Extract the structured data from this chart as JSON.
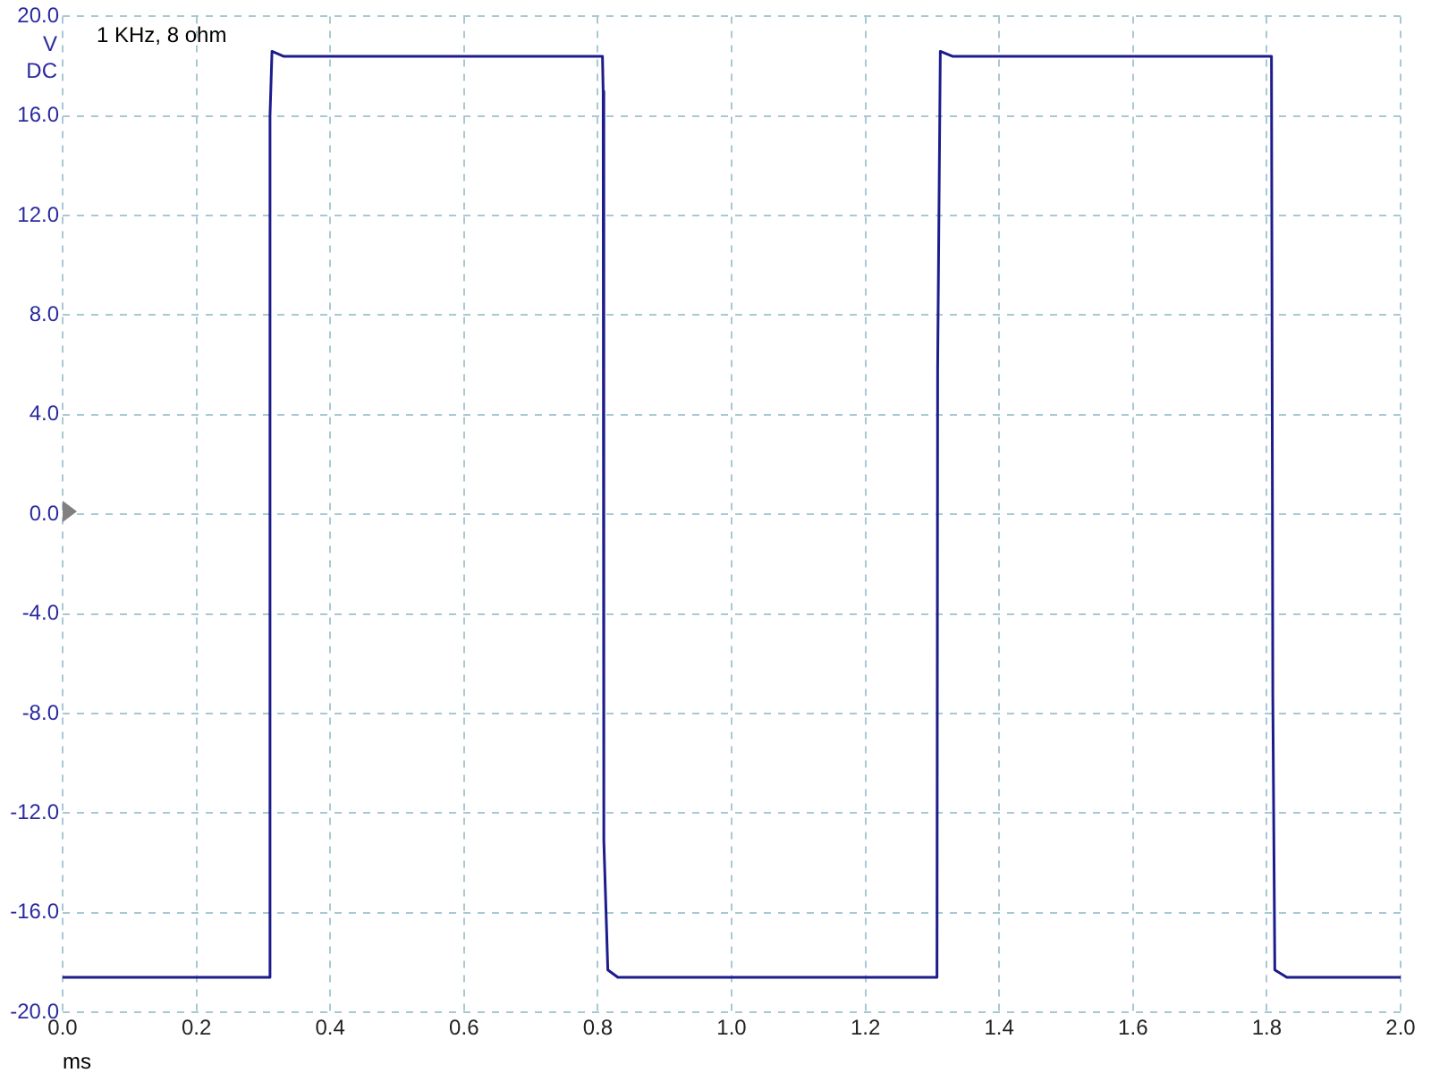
{
  "chart_data": {
    "type": "line",
    "annotations": [
      "1 KHz, 8 ohm"
    ],
    "xlabel": "ms",
    "ylabel": "V DC",
    "x": [
      0,
      0.31,
      0.31,
      0.313,
      0.33,
      0.807,
      0.808,
      0.809,
      0.815,
      0.83,
      1.307,
      1.308,
      1.312,
      1.33,
      1.807,
      1.809,
      1.812,
      1.83,
      2.0
    ],
    "series": [
      {
        "color": "#1c1c8c",
        "values": [
          -18.6,
          -18.6,
          16.0,
          18.6,
          18.4,
          18.4,
          17.0,
          -13.1,
          -18.3,
          -18.6,
          -18.6,
          5.9,
          18.6,
          18.4,
          18.4,
          -7.3,
          -18.3,
          -18.6,
          -18.6
        ]
      }
    ],
    "xlim": [
      0,
      2
    ],
    "xticks": [
      {
        "value": 0,
        "label": "0.0"
      },
      0.2,
      0.4,
      0.6,
      0.8,
      {
        "value": 1,
        "label": "1.0"
      },
      1.2,
      1.4,
      1.6,
      1.8,
      {
        "value": 2,
        "label": "2.0"
      }
    ],
    "ylim": [
      -20,
      20
    ],
    "yticks": [
      {
        "value": -20,
        "label": "-20.0"
      },
      {
        "value": -16,
        "label": "-16.0"
      },
      {
        "value": -12,
        "label": "-12.0"
      },
      {
        "value": -8,
        "label": "-8.0"
      },
      {
        "value": -4,
        "label": "-4.0"
      },
      {
        "value": 0,
        "label": "0.0"
      },
      {
        "value": 4,
        "label": "4.0"
      },
      {
        "value": 8,
        "label": "8.0"
      },
      {
        "value": 12,
        "label": "12.0"
      },
      {
        "value": 16,
        "label": "16.0"
      },
      {
        "value": 20,
        "label": "20.0"
      }
    ],
    "grid": true,
    "legend": false,
    "marker": "none",
    "line_style": "solid"
  }
}
